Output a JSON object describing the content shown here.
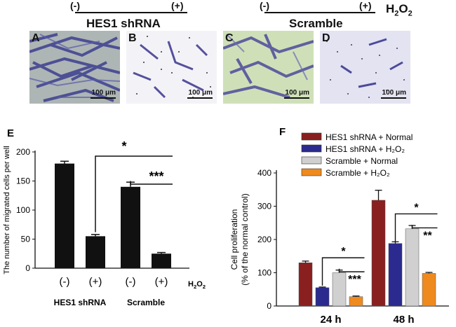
{
  "top": {
    "minus": "(-)",
    "plus": "(+)",
    "h2o2": "H",
    "h2o2_sub": "2",
    "h2o2_o": "O",
    "h2o2_sub2": "2",
    "group1": "HES1 shRNA",
    "group2": "Scramble"
  },
  "panels": [
    {
      "letter": "A",
      "scale": "100 μm",
      "bg": "#b9bfb6"
    },
    {
      "letter": "B",
      "scale": "100 μm",
      "bg": "#f1f1f6"
    },
    {
      "letter": "C",
      "scale": "100 μm",
      "bg": "#cfe0b8"
    },
    {
      "letter": "D",
      "scale": "100 μm",
      "bg": "#e3e3f1"
    }
  ],
  "chart_data": [
    {
      "type": "bar",
      "panel": "E",
      "ylabel": "The number of migrated cells per well",
      "categories": [
        "(-)",
        "(+)",
        "(-)",
        "(+)"
      ],
      "groups": [
        "HES1 shRNA",
        "Scramble"
      ],
      "xlabel_extra": "H2O2",
      "values": [
        180,
        55,
        140,
        25
      ],
      "errors": [
        4,
        3,
        8,
        2
      ],
      "ylim": [
        0,
        200
      ],
      "yticks": [
        0,
        50,
        100,
        150,
        200
      ],
      "bar_color": "#111111",
      "annotations": [
        "*",
        "***"
      ]
    },
    {
      "type": "bar",
      "panel": "F",
      "ylabel": "Cell proliferation",
      "ylabel2": "(% of the normal control)",
      "categories": [
        "24 h",
        "48 h"
      ],
      "series": [
        {
          "name": "HES1 shRNA + Normal",
          "values": [
            130,
            318
          ],
          "errors": [
            5,
            30
          ],
          "color": "#8a1f1f"
        },
        {
          "name": "HES1 shRNA + H2O2",
          "values": [
            55,
            188
          ],
          "errors": [
            2,
            5
          ],
          "color": "#2b2a8f"
        },
        {
          "name": "Scramble + Normal",
          "values": [
            100,
            232
          ],
          "errors": [
            8,
            10
          ],
          "color": "#d0d0d0"
        },
        {
          "name": "Scramble + H2O2",
          "values": [
            28,
            98
          ],
          "errors": [
            2,
            3
          ],
          "color": "#ef8a1f"
        }
      ],
      "ylim": [
        0,
        400
      ],
      "yticks": [
        0,
        100,
        200,
        300,
        400
      ],
      "annotations": {
        "24 h": [
          "*",
          "***"
        ],
        "48 h": [
          "*",
          "**"
        ]
      }
    }
  ]
}
